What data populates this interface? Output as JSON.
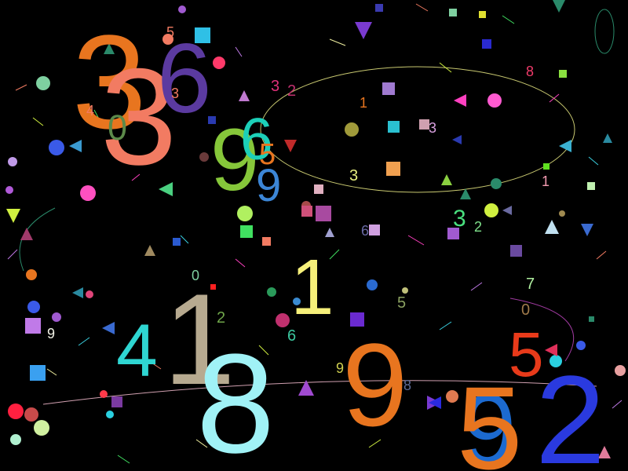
{
  "scene": {
    "background_color": "#000000",
    "digits": [
      {
        "text": "3",
        "color": "#e8751f"
      },
      {
        "text": "3",
        "color": "#f27b62"
      },
      {
        "text": "6",
        "color": "#5b3aa0"
      },
      {
        "text": "5",
        "color": "#f27b62"
      },
      {
        "text": "3",
        "color": "#f27b62"
      },
      {
        "text": "4",
        "color": "#f27b62"
      },
      {
        "text": "0",
        "color": "#5c8a4a"
      },
      {
        "text": "9",
        "color": "#86c73a"
      },
      {
        "text": "6",
        "color": "#1ccfb8"
      },
      {
        "text": "5",
        "color": "#e8751f"
      },
      {
        "text": "9",
        "color": "#3c86d6"
      },
      {
        "text": "3",
        "color": "#e0307a"
      },
      {
        "text": "2",
        "color": "#c0306e"
      },
      {
        "text": "1",
        "color": "#e8751f"
      },
      {
        "text": "8",
        "color": "#ef3b6a"
      },
      {
        "text": "3",
        "color": "#d9a0e0"
      },
      {
        "text": "3",
        "color": "#e8f080"
      },
      {
        "text": "1",
        "color": "#f39ab0"
      },
      {
        "text": "3",
        "color": "#49e07e"
      },
      {
        "text": "2",
        "color": "#7ee08a"
      },
      {
        "text": "6",
        "color": "#6a6aa6"
      },
      {
        "text": "1",
        "color": "#f6f07a"
      },
      {
        "text": "0",
        "color": "#7ed0a0"
      },
      {
        "text": "1",
        "color": "#b7aa90"
      },
      {
        "text": "2",
        "color": "#6fa64a"
      },
      {
        "text": "6",
        "color": "#3cc8a0"
      },
      {
        "text": "4",
        "color": "#2fd6d2"
      },
      {
        "text": "9",
        "color": "#f2f2e6"
      },
      {
        "text": "8",
        "color": "#a0f2f6"
      },
      {
        "text": "9",
        "color": "#d0d050"
      },
      {
        "text": "9",
        "color": "#e8751f"
      },
      {
        "text": "5",
        "color": "#8aa060"
      },
      {
        "text": "8",
        "color": "#5c6a96"
      },
      {
        "text": "7",
        "color": "#b0f0a0"
      },
      {
        "text": "0",
        "color": "#a07a4a"
      },
      {
        "text": "5",
        "color": "#e83a1a"
      },
      {
        "text": "9",
        "color": "#1c6ad0"
      },
      {
        "text": "5",
        "color": "#e8751f"
      },
      {
        "text": "2",
        "color": "#2a3adf"
      }
    ],
    "circles": [
      {
        "color": "#f27b62"
      },
      {
        "color": "#a05ad0"
      },
      {
        "color": "#7ed0a0"
      },
      {
        "color": "#ff3a6a"
      },
      {
        "color": "#3a5ae8"
      },
      {
        "color": "#ff50c0"
      },
      {
        "color": "#b05ad8"
      },
      {
        "color": "#a09a3a"
      },
      {
        "color": "#c09ae8"
      },
      {
        "color": "#2a8a6a"
      },
      {
        "color": "#ff5ad0"
      },
      {
        "color": "#d0f040"
      },
      {
        "color": "#b0f060"
      },
      {
        "color": "#6a3a3a"
      },
      {
        "color": "#a84a4a"
      },
      {
        "color": "#c0306e"
      },
      {
        "color": "#e0457a"
      },
      {
        "color": "#2a9a5a"
      },
      {
        "color": "#3a8ad0"
      },
      {
        "color": "#2a6ad0"
      },
      {
        "color": "#a05ad0"
      },
      {
        "color": "#ff2040"
      },
      {
        "color": "#2ad0e0"
      },
      {
        "color": "#e8a0a0"
      },
      {
        "color": "#d0f0a0"
      },
      {
        "color": "#3a5ae8"
      },
      {
        "color": "#ff3a4a"
      },
      {
        "color": "#c84a4a"
      },
      {
        "color": "#b0f0d0"
      },
      {
        "color": "#e8751f"
      },
      {
        "color": "#e07a50"
      },
      {
        "color": "#3a5ae8"
      },
      {
        "color": "#c0c07a"
      },
      {
        "color": "#8a3a3a"
      },
      {
        "color": "#a08a50"
      },
      {
        "color": "#2ad0e0"
      }
    ],
    "squares": [
      {
        "color": "#2fc0e6"
      },
      {
        "color": "#3a3ab0"
      },
      {
        "color": "#7ed0a0"
      },
      {
        "color": "#e0e030"
      },
      {
        "color": "#2a2ad0"
      },
      {
        "color": "#a07ad0"
      },
      {
        "color": "#2ac0d0"
      },
      {
        "color": "#d0a0b0"
      },
      {
        "color": "#f0a050"
      },
      {
        "color": "#e0b0c0"
      },
      {
        "color": "#a84aa0"
      },
      {
        "color": "#d0507a"
      },
      {
        "color": "#8ae040"
      },
      {
        "color": "#f27b62"
      },
      {
        "color": "#2a5ad0"
      },
      {
        "color": "#d0a0e0"
      },
      {
        "color": "#a05ad0"
      },
      {
        "color": "#6a4aa0"
      },
      {
        "color": "#ff2020"
      },
      {
        "color": "#6a2ad0"
      },
      {
        "color": "#c07ae8"
      },
      {
        "color": "#3aa0f0"
      },
      {
        "color": "#7a3aa0"
      },
      {
        "color": "#2a8a6a"
      },
      {
        "color": "#60e020"
      },
      {
        "color": "#40e060"
      },
      {
        "color": "#2a3ab0"
      },
      {
        "color": "#c0f0b0"
      }
    ],
    "triangles": [
      {
        "color": "#7a3ad0"
      },
      {
        "color": "#2a8a6a"
      },
      {
        "color": "#3a9ad0"
      },
      {
        "color": "#d0f040"
      },
      {
        "color": "#a03a6a"
      },
      {
        "color": "#4ad080"
      },
      {
        "color": "#c07ad0"
      },
      {
        "color": "#8ad040"
      },
      {
        "color": "#a08a60"
      },
      {
        "color": "#2a8aa0"
      },
      {
        "color": "#3a6ad0"
      },
      {
        "color": "#a04ad0"
      },
      {
        "color": "#ff40c0"
      },
      {
        "color": "#2a8a6a"
      },
      {
        "color": "#3ab0d0"
      },
      {
        "color": "#c02a2a"
      },
      {
        "color": "#2a3ab0"
      },
      {
        "color": "#6a6aa0"
      },
      {
        "color": "#2a8a6a"
      },
      {
        "color": "#e0305a"
      },
      {
        "color": "#7a3ad0"
      },
      {
        "color": "#2a2ae0"
      },
      {
        "color": "#3a6ad0"
      },
      {
        "color": "#c0e0f0"
      },
      {
        "color": "#e07a9a"
      },
      {
        "color": "#2a8aa0"
      },
      {
        "color": "#a0a0d0"
      }
    ],
    "streak_colors": [
      "#f27b62",
      "#d0f040",
      "#40e060",
      "#ff40c0",
      "#3ad0e0",
      "#c07ae8",
      "#f0f0a0"
    ]
  }
}
